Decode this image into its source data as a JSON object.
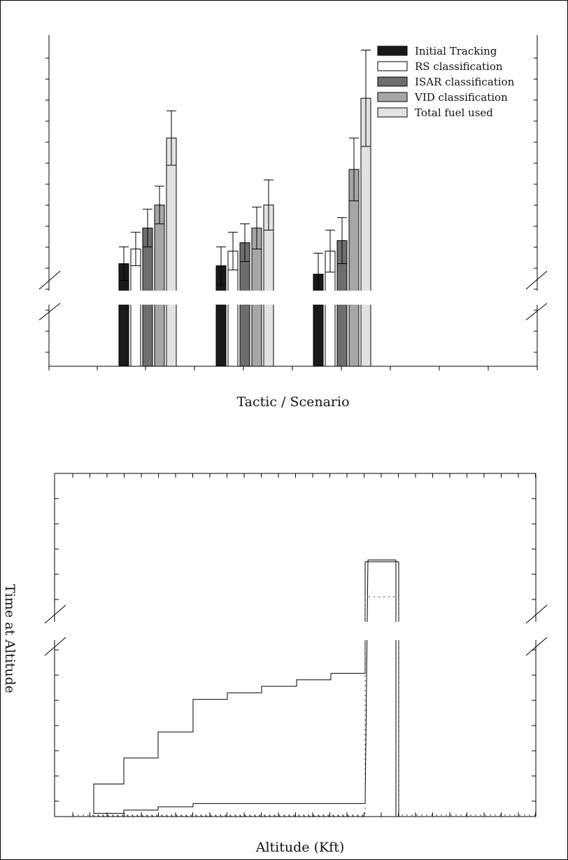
{
  "chart_data": [
    {
      "type": "bar",
      "xlabel": "Tactic / Scenario",
      "ylabel": "",
      "ylim": [
        0,
        10
      ],
      "axis_break": true,
      "categories": [
        "",
        "",
        ""
      ],
      "series": [
        {
          "name": "Initial Tracking",
          "color": "#1a1a1a",
          "values": [
            4.9,
            4.8,
            4.4
          ],
          "errors": [
            0.8,
            0.9,
            1.0
          ]
        },
        {
          "name": "RS classification",
          "color": "#ffffff",
          "values": [
            5.6,
            5.5,
            5.5
          ],
          "errors": [
            0.8,
            0.9,
            1.0
          ]
        },
        {
          "name": "ISAR classification",
          "color": "#6e6e6e",
          "values": [
            6.6,
            5.9,
            6.0
          ],
          "errors": [
            0.9,
            0.9,
            1.1
          ]
        },
        {
          "name": "VID classification",
          "color": "#a6a6a6",
          "values": [
            7.7,
            6.6,
            9.4
          ],
          "errors": [
            0.9,
            1.0,
            1.5
          ]
        },
        {
          "name": "Total fuel used",
          "color": "#e2e2e2",
          "values": [
            10.9,
            7.7,
            12.8
          ],
          "errors": [
            1.3,
            1.2,
            2.3
          ]
        }
      ],
      "legend": "top-right"
    },
    {
      "type": "line",
      "xlabel": "Altitude (Kft)",
      "ylabel": "Time at Altitude",
      "axis_break": true,
      "x": [
        0,
        1,
        2,
        3,
        4,
        5,
        6,
        7,
        8,
        9,
        10,
        11,
        12,
        13
      ],
      "series": [
        {
          "style": "solid",
          "values": [
            0,
            1.0,
            1.8,
            2.6,
            3.6,
            3.8,
            4.0,
            4.2,
            4.4,
            9.4,
            0,
            0,
            0,
            0
          ]
        },
        {
          "style": "solid",
          "values": [
            0,
            0.1,
            0.2,
            0.3,
            0.4,
            0.4,
            0.4,
            0.4,
            0.4,
            9.5,
            0,
            0,
            0,
            0
          ]
        },
        {
          "style": "dotted",
          "values": [
            0,
            0.02,
            0.02,
            0.02,
            0.02,
            0.02,
            0.02,
            0.02,
            0.02,
            7.4,
            0,
            0,
            0,
            0
          ]
        }
      ]
    }
  ]
}
